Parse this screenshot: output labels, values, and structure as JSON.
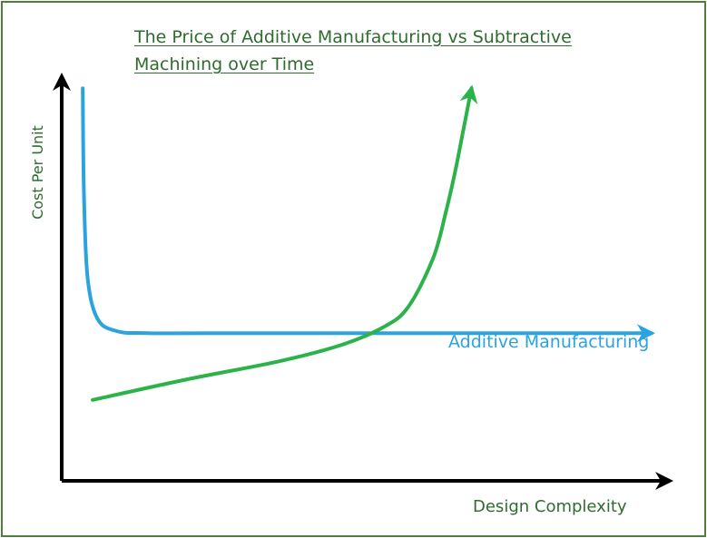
{
  "chart_data": {
    "type": "line",
    "title_lines": [
      "The Price of Additive Manufacturing vs Subtractive",
      "Machining over Time"
    ],
    "xlabel": "Design Complexity",
    "ylabel": "Cost Per Unit",
    "grid": false,
    "x_range": [
      0,
      100
    ],
    "y_range": [
      0,
      100
    ],
    "series": [
      {
        "name": "Additive Manufacturing",
        "color": "#2aa3e0",
        "line_end": "arrow",
        "x": [
          3.4,
          3.6,
          4.2,
          5.8,
          8.9,
          14,
          30,
          50,
          70,
          88,
          95.3
        ],
        "y": [
          97,
          70,
          50,
          40,
          37,
          36.5,
          36.5,
          36.5,
          36.5,
          36.5,
          36.5
        ]
      },
      {
        "color": "#2bb34a",
        "line_end": "arrow",
        "x": [
          5,
          20,
          35,
          45,
          52,
          56,
          60,
          62,
          63.5,
          64.8,
          66.2
        ],
        "y": [
          20,
          25,
          29.5,
          33.5,
          38,
          43,
          55,
          66,
          76,
          86,
          97
        ]
      }
    ]
  }
}
